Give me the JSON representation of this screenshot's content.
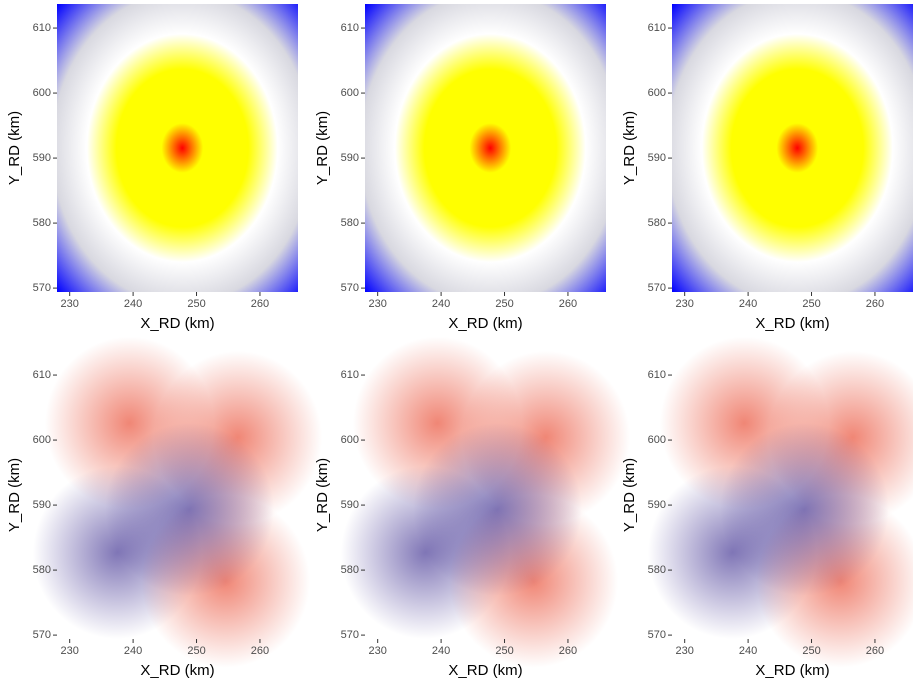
{
  "chart_data": [
    {
      "type": "heatmap",
      "xlabel": "X_RD (km)",
      "ylabel": "Y_RD (km)",
      "xlim": [
        228,
        266
      ],
      "ylim": [
        569.4,
        613.7
      ],
      "xticks": [
        230,
        240,
        250,
        260
      ],
      "yticks": [
        570,
        580,
        590,
        600,
        610
      ],
      "colors": [
        "#0000ff",
        "#ffffff",
        "#ffff00",
        "#ff0000"
      ]
    },
    {
      "type": "heatmap",
      "xlabel": "X_RD (km)",
      "ylabel": "Y_RD (km)",
      "xlim": [
        228,
        266
      ],
      "ylim": [
        569.4,
        613.7
      ],
      "xticks": [
        230,
        240,
        250,
        260
      ],
      "yticks": [
        570,
        580,
        590,
        600,
        610
      ],
      "colors": [
        "#0000ff",
        "#ffffff",
        "#ffff00",
        "#ff0000"
      ]
    },
    {
      "type": "heatmap",
      "xlabel": "X_RD (km)",
      "ylabel": "Y_RD (km)",
      "xlim": [
        228,
        266
      ],
      "ylim": [
        569.4,
        613.7
      ],
      "xticks": [
        230,
        240,
        250,
        260
      ],
      "yticks": [
        570,
        580,
        590,
        600,
        610
      ],
      "colors": [
        "#0000ff",
        "#ffffff",
        "#ffff00",
        "#ff0000"
      ]
    },
    {
      "type": "heatmap",
      "xlabel": "X_RD (km)",
      "ylabel": "Y_RD (km)",
      "xlim": [
        228,
        266
      ],
      "ylim": [
        569.4,
        613.7
      ],
      "xticks": [
        230,
        240,
        250,
        260
      ],
      "yticks": [
        570,
        580,
        590,
        600,
        610
      ],
      "colors": [
        "#3b2c8f",
        "#ffffff",
        "#e8452b"
      ]
    },
    {
      "type": "heatmap",
      "xlabel": "X_RD (km)",
      "ylabel": "Y_RD (km)",
      "xlim": [
        228,
        266
      ],
      "ylim": [
        569.4,
        613.7
      ],
      "xticks": [
        230,
        240,
        250,
        260
      ],
      "yticks": [
        570,
        580,
        590,
        600,
        610
      ],
      "colors": [
        "#3b2c8f",
        "#ffffff",
        "#e8452b"
      ]
    },
    {
      "type": "heatmap",
      "xlabel": "X_RD (km)",
      "ylabel": "Y_RD (km)",
      "xlim": [
        228,
        266
      ],
      "ylim": [
        569.4,
        613.7
      ],
      "xticks": [
        230,
        240,
        250,
        260
      ],
      "yticks": [
        570,
        580,
        590,
        600,
        610
      ],
      "colors": [
        "#3b2c8f",
        "#ffffff",
        "#e8452b"
      ]
    }
  ]
}
